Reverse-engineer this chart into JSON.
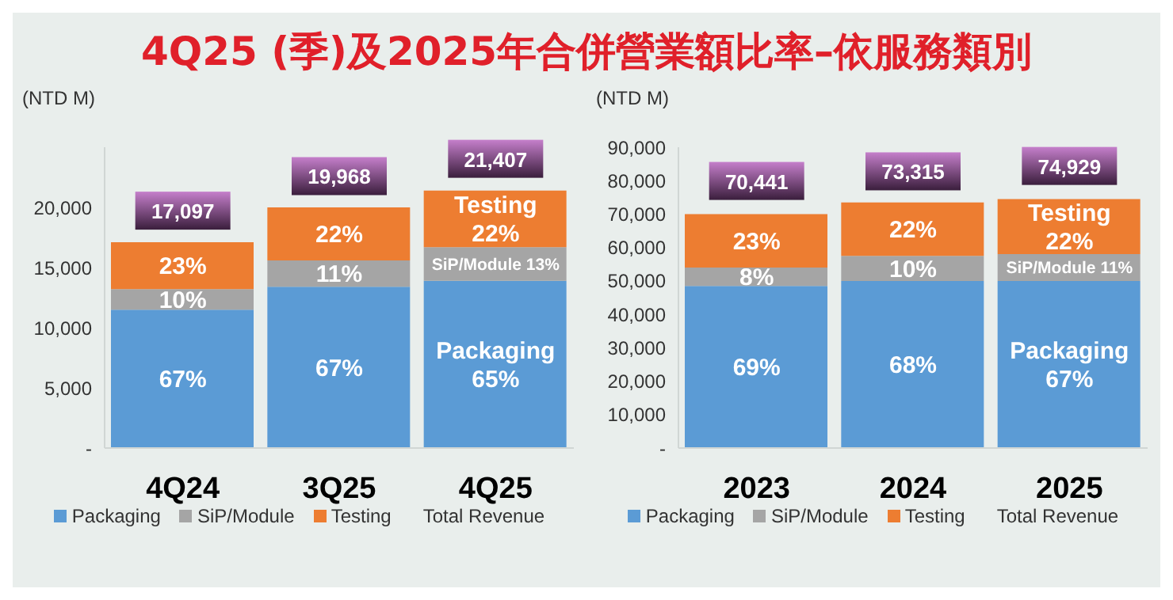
{
  "chart_data": [
    {
      "type": "bar",
      "title": "4Q25 (季)及2025年合併營業額比率–依服務類別",
      "ylabel": "(NTD M)",
      "categories": [
        "4Q24",
        "3Q25",
        "4Q25"
      ],
      "stacked": true,
      "ylim": [
        0,
        25000
      ],
      "yticks": [
        {
          "value": 0,
          "label": "-"
        },
        {
          "value": 5000,
          "label": "5,000"
        },
        {
          "value": 10000,
          "label": "10,000"
        },
        {
          "value": 15000,
          "label": "15,000"
        },
        {
          "value": 20000,
          "label": "20,000"
        }
      ],
      "legend": "bottom",
      "annotations": [
        "67%",
        "67%",
        "Packaging\n65%",
        "10%",
        "11%",
        "SiP/Module 13%",
        "23%",
        "22%",
        "Testing\n22%",
        "Total Revenue",
        {
          "text": "17,097",
          "x": "4Q24",
          "y": 17097
        },
        {
          "text": "19,968",
          "x": "3Q25",
          "y": 19968
        },
        {
          "text": "21,407",
          "x": "4Q25",
          "y": 21407
        }
      ],
      "series": [
        {
          "name": "Packaging",
          "color": "#5b9bd5",
          "values": [
            11500,
            13400,
            13900
          ]
        },
        {
          "name": "SiP/Module",
          "color": "#a5a5a5",
          "values": [
            1700,
            2200,
            2800
          ]
        },
        {
          "name": "Testing",
          "color": "#ed7d31",
          "values": [
            3900,
            4400,
            4700
          ]
        }
      ]
    },
    {
      "type": "bar",
      "ylabel": "(NTD M)",
      "categories": [
        "2023",
        "2024",
        "2025"
      ],
      "stacked": true,
      "ylim": [
        0,
        90000
      ],
      "yticks": [
        {
          "value": 0,
          "label": "-"
        },
        {
          "value": 10000,
          "label": "10,000"
        },
        {
          "value": 20000,
          "label": "20,000"
        },
        {
          "value": 30000,
          "label": "30,000"
        },
        {
          "value": 40000,
          "label": "40,000"
        },
        {
          "value": 50000,
          "label": "50,000"
        },
        {
          "value": 60000,
          "label": "60,000"
        },
        {
          "value": 70000,
          "label": "70,000"
        },
        {
          "value": 80000,
          "label": "80,000"
        },
        {
          "value": 90000,
          "label": "90,000"
        }
      ],
      "legend": "bottom",
      "annotations": [
        "69%",
        "68%",
        "Packaging\n67%",
        "8%",
        "10%",
        "SiP/Module 11%",
        "23%",
        "22%",
        "Testing\n22%",
        "Total Revenue",
        {
          "text": "70,441",
          "x": "2023",
          "y": 70441
        },
        {
          "text": "73,315",
          "x": "2024",
          "y": 73315
        },
        {
          "text": "74,929",
          "x": "2025",
          "y": 74929
        }
      ],
      "series": [
        {
          "name": "Packaging",
          "color": "#5b9bd5",
          "values": [
            48500,
            50000,
            50000
          ]
        },
        {
          "name": "SiP/Module",
          "color": "#a5a5a5",
          "values": [
            5500,
            7500,
            8000
          ]
        },
        {
          "name": "Testing",
          "color": "#ed7d31",
          "values": [
            16000,
            16000,
            16500
          ]
        }
      ]
    }
  ]
}
